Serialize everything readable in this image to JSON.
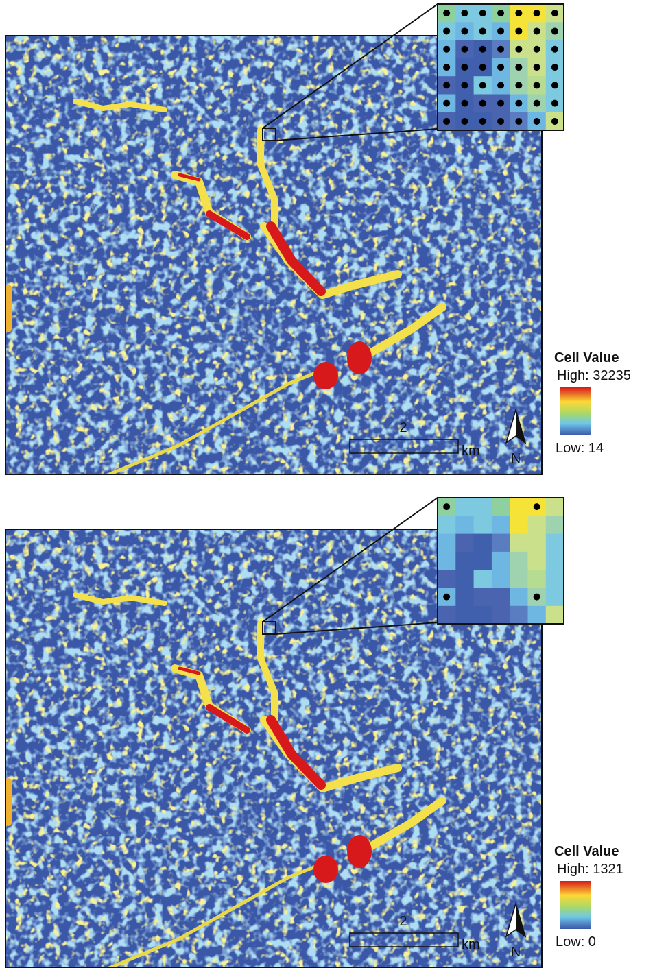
{
  "panels": [
    {
      "legend": {
        "title": "Cell Value",
        "high": "High: 32235",
        "low": "Low: 14"
      },
      "scale_bar": {
        "label": "2",
        "unit": "km"
      },
      "north": "N"
    },
    {
      "legend": {
        "title": "Cell Value",
        "high": "High: 1321",
        "low": "Low: 0"
      },
      "scale_bar": {
        "label": "2",
        "unit": "km"
      },
      "north": "N"
    }
  ]
}
